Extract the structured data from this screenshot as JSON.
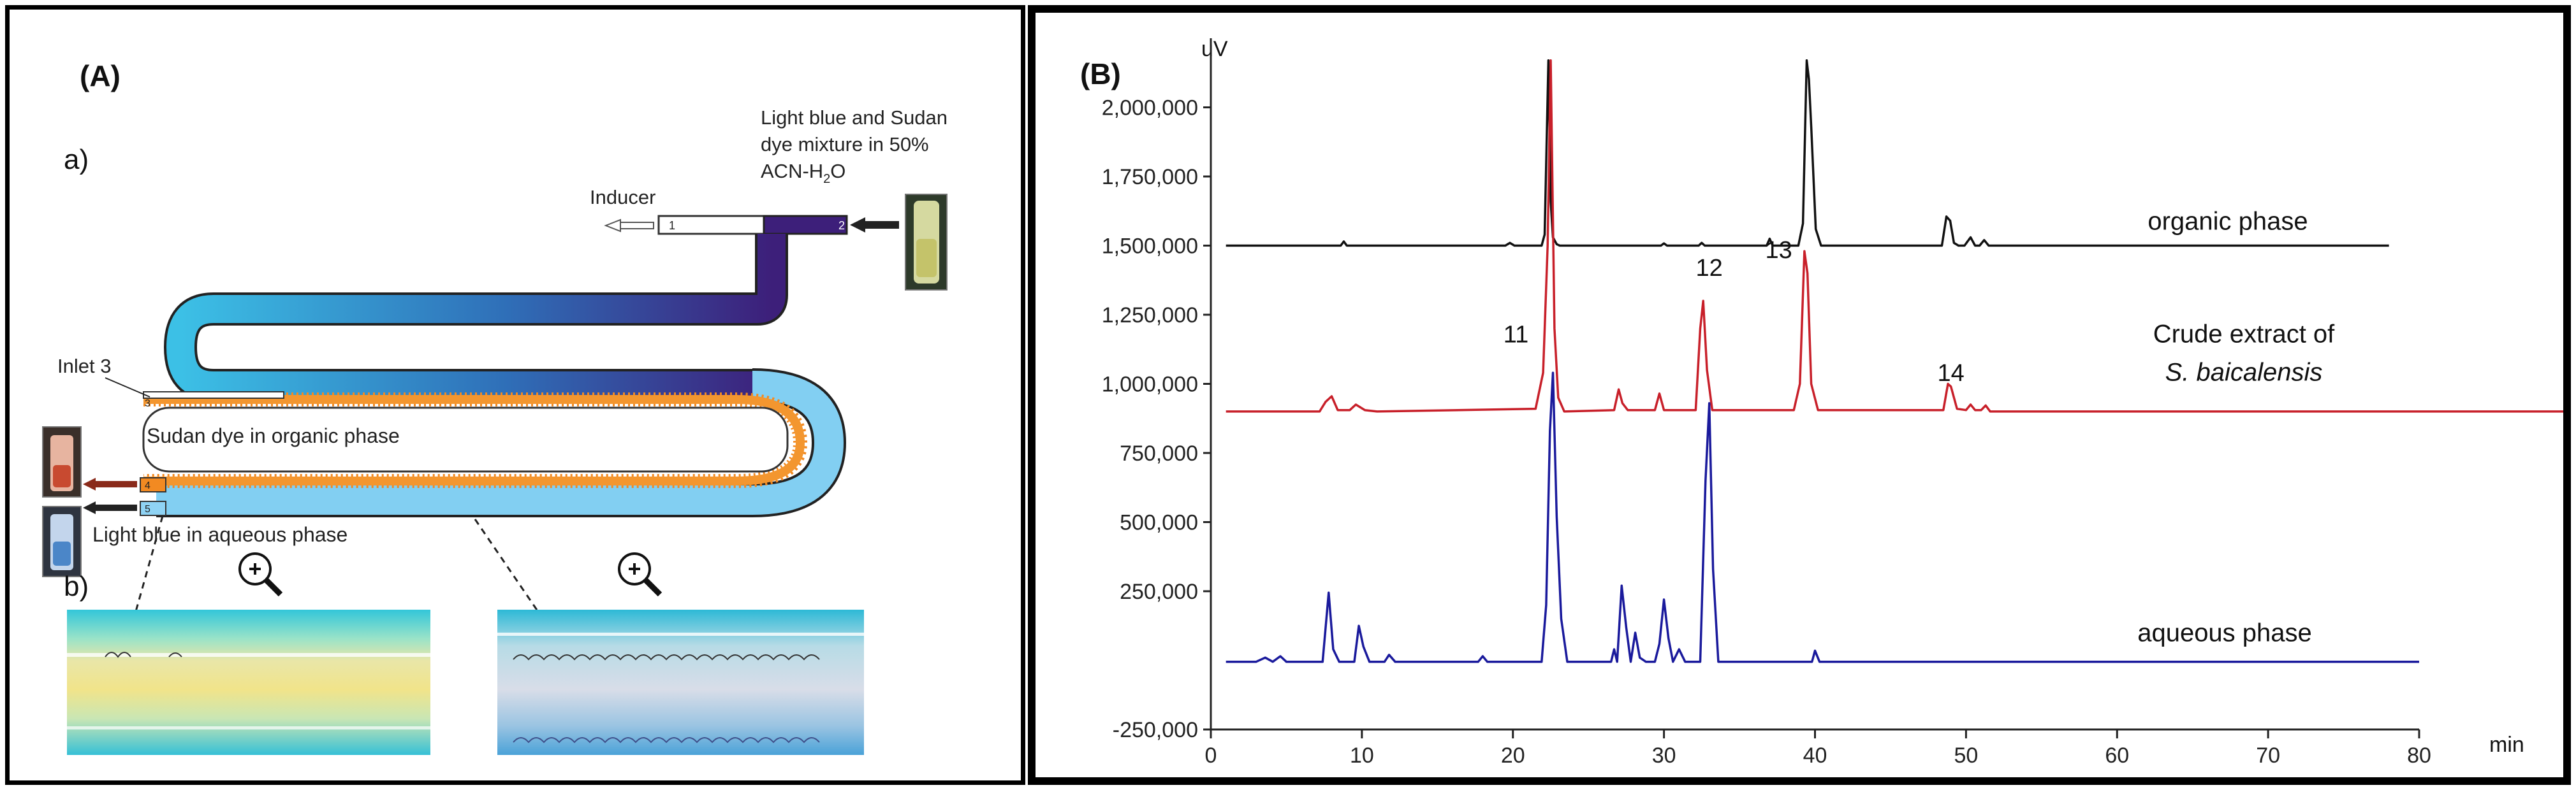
{
  "panel_a": {
    "label": "(A)",
    "sub_a": "a)",
    "sub_b": "b)",
    "inducer": "Inducer",
    "dye_line1": "Light blue and Sudan",
    "dye_line2": "dye mixture in 50%",
    "dye_line3": "ACN-H",
    "dye_sub": "2",
    "dye_end": "O",
    "inlet3": "Inlet 3",
    "organic_label": "Sudan dye in organic phase",
    "aqueous_label": "Light blue in aqueous phase",
    "port1": "1",
    "port2": "2",
    "port3": "3",
    "port4": "4",
    "port5": "5",
    "colors": {
      "dark_purple": "#3d1f7a",
      "cyan": "#38b7e0",
      "orange": "#f08a24",
      "light_blue": "#8fd3f4"
    }
  },
  "panel_b": {
    "label": "(B)",
    "chart_data": {
      "type": "line",
      "xlabel": "min",
      "ylabel": "uV",
      "xlim": [
        0,
        80
      ],
      "ylim": [
        -250000,
        2250000
      ],
      "xticks": [
        "0",
        "10",
        "20",
        "30",
        "40",
        "50",
        "60",
        "70",
        "80"
      ],
      "yticks": [
        "-250,000",
        "250,000",
        "500,000",
        "750,000",
        "1,000,000",
        "1,250,000",
        "1,500,000",
        "1,750,000",
        "2,000,000"
      ],
      "series": [
        {
          "name": "organic phase",
          "color": "#111111",
          "x": [
            1,
            8.6,
            8.8,
            9,
            9.4,
            19.5,
            19.8,
            20.1,
            21.9,
            22.1,
            22.35,
            22.5,
            22.65,
            22.9,
            23.1,
            29.8,
            30,
            30.2,
            32.3,
            32.5,
            32.7,
            36.8,
            37,
            37.2,
            38.9,
            39.2,
            39.45,
            39.6,
            39.75,
            40.05,
            40.4,
            48.4,
            48.7,
            48.95,
            49.2,
            49.5,
            49.9,
            50.3,
            50.6,
            50.9,
            51.2,
            51.5,
            78
          ],
          "values": [
            1500000,
            1500000,
            1515000,
            1500000,
            1500000,
            1500000,
            1510000,
            1500000,
            1500000,
            1540000,
            2170000,
            1660000,
            1530000,
            1505000,
            1500000,
            1500000,
            1508000,
            1500000,
            1500000,
            1510000,
            1500000,
            1500000,
            1525000,
            1500000,
            1500000,
            1580000,
            2170000,
            2100000,
            1930000,
            1560000,
            1500000,
            1500000,
            1605000,
            1590000,
            1510000,
            1500000,
            1500000,
            1530000,
            1500000,
            1500000,
            1520000,
            1500000,
            1500000
          ]
        },
        {
          "name": "Crude extract of S. baicalensis",
          "color": "#c8202a",
          "x": [
            1,
            7.2,
            7.6,
            8,
            8.4,
            9.2,
            9.6,
            10.2,
            11,
            21.5,
            22,
            22.3,
            22.5,
            22.75,
            23,
            23.4,
            26.7,
            27,
            27.25,
            27.6,
            29.4,
            29.7,
            30,
            32.1,
            32.4,
            32.6,
            32.85,
            33.2,
            38.6,
            39,
            39.3,
            39.5,
            39.75,
            40.2,
            48.5,
            48.8,
            49,
            49.4,
            50,
            50.3,
            50.6,
            51,
            51.3,
            51.6,
            90
          ],
          "values": [
            900000,
            900000,
            935000,
            955000,
            905000,
            905000,
            925000,
            905000,
            900000,
            910000,
            1040000,
            1500000,
            2170000,
            1200000,
            950000,
            900000,
            905000,
            980000,
            930000,
            905000,
            905000,
            965000,
            905000,
            905000,
            1200000,
            1300000,
            1050000,
            905000,
            905000,
            1000000,
            1480000,
            1400000,
            1000000,
            905000,
            905000,
            1000000,
            990000,
            910000,
            905000,
            925000,
            905000,
            905000,
            922000,
            900000,
            900000
          ]
        },
        {
          "name": "aqueous phase",
          "color": "#1a1a9c",
          "x": [
            1,
            3,
            3.6,
            4.1,
            4.6,
            5,
            5.5,
            7.4,
            7.8,
            8.1,
            8.5,
            9.5,
            9.8,
            10.1,
            10.5,
            11.5,
            11.8,
            12.2,
            17.7,
            18,
            18.3,
            21.9,
            22.2,
            22.45,
            22.65,
            22.9,
            23.2,
            23.6,
            26.5,
            26.7,
            26.9,
            27.2,
            27.5,
            27.8,
            28.1,
            28.4,
            28.8,
            29.4,
            29.7,
            30,
            30.3,
            30.6,
            31,
            31.4,
            32.4,
            32.75,
            33,
            33.25,
            33.6,
            39.8,
            40,
            40.3,
            41,
            80
          ],
          "values": [
            -5000,
            -5000,
            10000,
            -5000,
            15000,
            -5000,
            -5000,
            -5000,
            245000,
            40000,
            -5000,
            -5000,
            125000,
            50000,
            -5000,
            -5000,
            20000,
            -5000,
            -5000,
            15000,
            -5000,
            -5000,
            200000,
            830000,
            1040000,
            520000,
            150000,
            -5000,
            -5000,
            40000,
            -5000,
            270000,
            120000,
            -5000,
            100000,
            10000,
            -5000,
            -5000,
            60000,
            220000,
            80000,
            -5000,
            40000,
            -5000,
            -5000,
            650000,
            930000,
            330000,
            -5000,
            -5000,
            35000,
            -5000,
            -5000,
            -5000
          ]
        }
      ],
      "annotations": [
        {
          "text": "11",
          "x": 20.2,
          "y": 1150000
        },
        {
          "text": "12",
          "x": 33.0,
          "y": 1390000
        },
        {
          "text": "13",
          "x": 37.6,
          "y": 1455000
        },
        {
          "text": "14",
          "x": 49.0,
          "y": 1010000
        }
      ],
      "series_labels": {
        "organic": "organic phase",
        "crude_line1": "Crude extract of",
        "crude_line2": "S. baicalensis",
        "aqueous": "aqueous phase"
      }
    }
  }
}
